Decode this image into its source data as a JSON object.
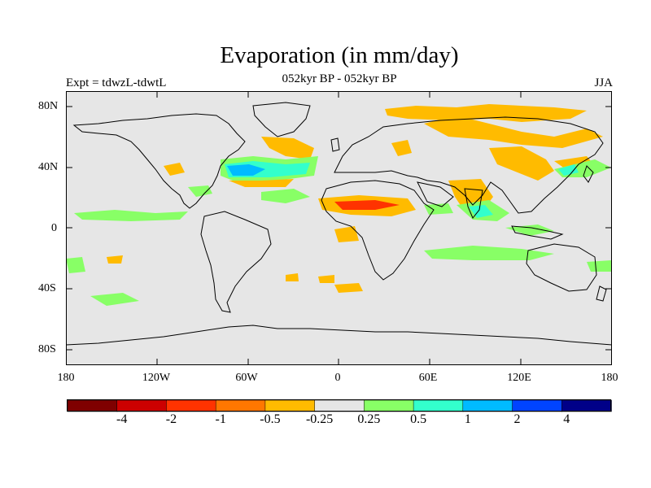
{
  "title": "Evaporation (in mm/day)",
  "subtitle": "052kyr BP - 052kyr BP",
  "left_label": "Expt = tdwzL-tdwtL",
  "right_label": "JJA",
  "lat_ticks": [
    "80N",
    "40N",
    "0",
    "40S",
    "80S"
  ],
  "lon_ticks": [
    "180",
    "120W",
    "60W",
    "0",
    "60E",
    "120E",
    "180"
  ],
  "colorbar": {
    "colors": [
      "#7f0000",
      "#cc0000",
      "#ff3300",
      "#ff7700",
      "#ffbb00",
      "#e6e6e6",
      "#88ff66",
      "#33ffcc",
      "#00bbff",
      "#0044ff",
      "#000088"
    ],
    "labels": [
      "-4",
      "-2",
      "-1",
      "-0.5",
      "-0.25",
      "0.25",
      "0.5",
      "1",
      "2",
      "4"
    ]
  },
  "map_colors": {
    "background": "#e6e6e6",
    "coast": "#000000"
  }
}
